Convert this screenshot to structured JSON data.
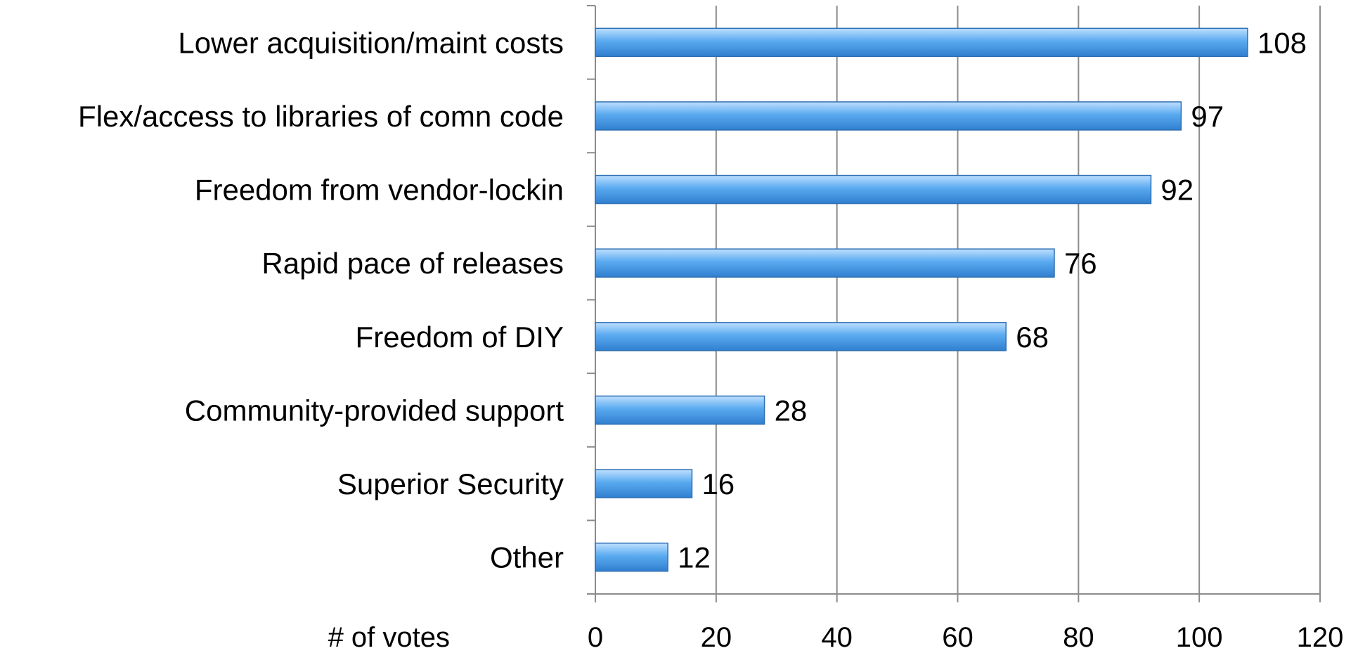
{
  "chart_data": {
    "type": "bar",
    "orientation": "horizontal",
    "categories": [
      "Lower acquisition/maint costs",
      "Flex/access to libraries of comn code",
      "Freedom from vendor-lockin",
      "Rapid pace of releases",
      "Freedom of DIY",
      "Community-provided support",
      "Superior Security",
      "Other"
    ],
    "values": [
      108,
      97,
      92,
      76,
      68,
      28,
      16,
      12
    ],
    "data_labels": [
      "108",
      "97",
      "92",
      "76",
      "68",
      "28",
      "16",
      "12"
    ],
    "xlabel": "# of votes",
    "ylabel": "",
    "title": "",
    "xlim": [
      0,
      120
    ],
    "x_ticks": [
      "0",
      "20",
      "40",
      "60",
      "80",
      "100",
      "120"
    ],
    "grid": "vertical",
    "bar_color": "#4a9ee8",
    "bar_edge_color": "#2f6fb3",
    "grid_color": "#8c8c8c"
  }
}
